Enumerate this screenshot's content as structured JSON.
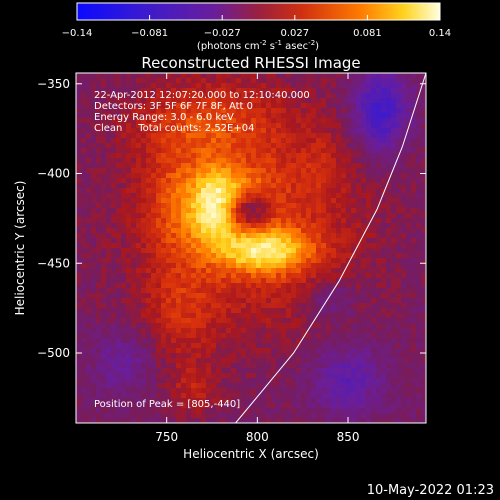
{
  "colorbar": {
    "ticks": [
      "-0.14",
      "-0.081",
      "-0.027",
      "0.027",
      "0.081",
      "0.14"
    ],
    "unit_parts": [
      "(photons cm",
      "-2",
      " s",
      "-1",
      " asec",
      "-2",
      ")"
    ]
  },
  "chart_data": {
    "type": "heatmap",
    "title": "Reconstructed RHESSI Image",
    "xlabel": "Heliocentric X (arcsec)",
    "ylabel": "Heliocentric Y (arcsec)",
    "xlim": [
      700,
      893
    ],
    "ylim": [
      -539,
      -344
    ],
    "x_ticks": [
      750,
      800,
      850
    ],
    "y_ticks": [
      -350,
      -400,
      -450,
      -500
    ],
    "x_tick_labels": [
      "750",
      "800",
      "850"
    ],
    "y_tick_labels": [
      "−350",
      "−400",
      "−450",
      "−500"
    ],
    "clim": [
      -0.14,
      0.14
    ],
    "colormap": "blue-purple-red-yellow-white",
    "annotations": [
      "22-Apr-2012 12:07:20.000 to 12:10:40.000",
      "Detectors: 3F 5F 6F 7F 8F, Att 0",
      "Energy Range: 3.0 - 6.0 keV",
      "Clean     Total counts: 2.52E+04"
    ],
    "peak_label": "Position of Peak = [805,-440]",
    "peak": [
      805,
      -440
    ],
    "limb_curve": [
      [
        788,
        -539
      ],
      [
        820,
        -500
      ],
      [
        845,
        -460
      ],
      [
        866,
        -420
      ],
      [
        880,
        -385
      ],
      [
        893,
        -344
      ]
    ]
  },
  "footer": {
    "date": "10-May-2022 01:23"
  }
}
